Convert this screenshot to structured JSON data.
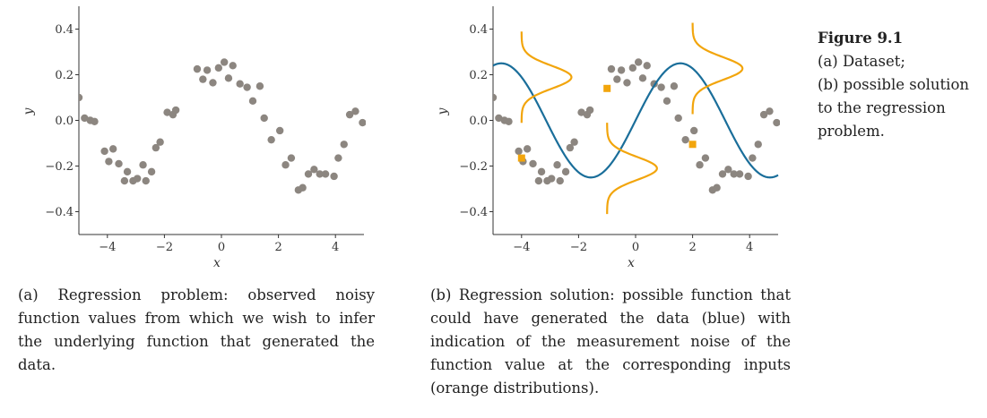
{
  "margin_note": {
    "title": "Figure 9.1",
    "lines": [
      "(a) Dataset;",
      "(b) possible solution",
      "to the regression",
      "problem."
    ]
  },
  "captions": {
    "a": "(a) Regression problem: observed noisy function values from which we wish to infer the underlying function that generated the data.",
    "b": "(b) Regression solution: possible function that could have generated the data (blue) with indication of the measurement noise of the function value at the corresponding inputs (orange distributions)."
  },
  "colors": {
    "points": "#8c8680",
    "function": "#1a6e9a",
    "noise": "#f2a50c",
    "axis": "#333333"
  },
  "chart_data": [
    {
      "id": "a",
      "type": "scatter",
      "title": "",
      "xlabel": "x",
      "ylabel": "y",
      "xlim": [
        -5,
        5
      ],
      "ylim": [
        -0.5,
        0.5
      ],
      "xticks": [
        -4,
        -2,
        0,
        2,
        4
      ],
      "xtick_labels": [
        "−4",
        "−2",
        "0",
        "2",
        "4"
      ],
      "yticks": [
        -0.4,
        -0.2,
        0.0,
        0.2,
        0.4
      ],
      "ytick_labels": [
        "−0.4",
        "−0.2",
        "0.0",
        "0.2",
        "0.4"
      ],
      "points": [
        [
          -5.0,
          0.1
        ],
        [
          -4.8,
          0.01
        ],
        [
          -4.6,
          0.0
        ],
        [
          -4.45,
          -0.005
        ],
        [
          -4.1,
          -0.135
        ],
        [
          -3.8,
          -0.125
        ],
        [
          -3.95,
          -0.18
        ],
        [
          -3.6,
          -0.19
        ],
        [
          -3.3,
          -0.225
        ],
        [
          -3.4,
          -0.265
        ],
        [
          -3.1,
          -0.265
        ],
        [
          -2.95,
          -0.255
        ],
        [
          -2.75,
          -0.195
        ],
        [
          -2.65,
          -0.265
        ],
        [
          -2.45,
          -0.225
        ],
        [
          -2.3,
          -0.12
        ],
        [
          -2.15,
          -0.095
        ],
        [
          -1.9,
          0.035
        ],
        [
          -1.7,
          0.025
        ],
        [
          -1.6,
          0.045
        ],
        [
          -0.85,
          0.225
        ],
        [
          -0.65,
          0.18
        ],
        [
          -0.5,
          0.22
        ],
        [
          -0.3,
          0.165
        ],
        [
          -0.1,
          0.23
        ],
        [
          0.1,
          0.255
        ],
        [
          0.25,
          0.185
        ],
        [
          0.4,
          0.24
        ],
        [
          0.65,
          0.16
        ],
        [
          0.9,
          0.145
        ],
        [
          1.1,
          0.085
        ],
        [
          1.35,
          0.15
        ],
        [
          1.5,
          0.01
        ],
        [
          1.75,
          -0.085
        ],
        [
          2.05,
          -0.045
        ],
        [
          2.25,
          -0.195
        ],
        [
          2.45,
          -0.165
        ],
        [
          2.7,
          -0.305
        ],
        [
          2.85,
          -0.295
        ],
        [
          3.05,
          -0.235
        ],
        [
          3.25,
          -0.215
        ],
        [
          3.45,
          -0.235
        ],
        [
          3.65,
          -0.235
        ],
        [
          3.95,
          -0.245
        ],
        [
          4.1,
          -0.165
        ],
        [
          4.3,
          -0.105
        ],
        [
          4.5,
          0.025
        ],
        [
          4.7,
          0.04
        ],
        [
          4.95,
          -0.01
        ]
      ]
    },
    {
      "id": "b",
      "type": "scatter",
      "title": "",
      "xlabel": "x",
      "ylabel": "y",
      "xlim": [
        -5,
        5
      ],
      "ylim": [
        -0.5,
        0.5
      ],
      "xticks": [
        -4,
        -2,
        0,
        2,
        4
      ],
      "xtick_labels": [
        "−4",
        "−2",
        "0",
        "2",
        "4"
      ],
      "yticks": [
        -0.4,
        -0.2,
        0.0,
        0.2,
        0.4
      ],
      "ytick_labels": [
        "−0.4",
        "−0.2",
        "0.0",
        "0.2",
        "0.4"
      ],
      "points": [
        [
          -5.0,
          0.1
        ],
        [
          -4.8,
          0.01
        ],
        [
          -4.6,
          0.0
        ],
        [
          -4.45,
          -0.005
        ],
        [
          -4.1,
          -0.135
        ],
        [
          -3.8,
          -0.125
        ],
        [
          -3.95,
          -0.18
        ],
        [
          -3.6,
          -0.19
        ],
        [
          -3.3,
          -0.225
        ],
        [
          -3.4,
          -0.265
        ],
        [
          -3.1,
          -0.265
        ],
        [
          -2.95,
          -0.255
        ],
        [
          -2.75,
          -0.195
        ],
        [
          -2.65,
          -0.265
        ],
        [
          -2.45,
          -0.225
        ],
        [
          -2.3,
          -0.12
        ],
        [
          -2.15,
          -0.095
        ],
        [
          -1.9,
          0.035
        ],
        [
          -1.7,
          0.025
        ],
        [
          -1.6,
          0.045
        ],
        [
          -0.85,
          0.225
        ],
        [
          -0.65,
          0.18
        ],
        [
          -0.5,
          0.22
        ],
        [
          -0.3,
          0.165
        ],
        [
          -0.1,
          0.23
        ],
        [
          0.1,
          0.255
        ],
        [
          0.25,
          0.185
        ],
        [
          0.4,
          0.24
        ],
        [
          0.65,
          0.16
        ],
        [
          0.9,
          0.145
        ],
        [
          1.1,
          0.085
        ],
        [
          1.35,
          0.15
        ],
        [
          1.5,
          0.01
        ],
        [
          1.75,
          -0.085
        ],
        [
          2.05,
          -0.045
        ],
        [
          2.25,
          -0.195
        ],
        [
          2.45,
          -0.165
        ],
        [
          2.7,
          -0.305
        ],
        [
          2.85,
          -0.295
        ],
        [
          3.05,
          -0.235
        ],
        [
          3.25,
          -0.215
        ],
        [
          3.45,
          -0.235
        ],
        [
          3.65,
          -0.235
        ],
        [
          3.95,
          -0.245
        ],
        [
          4.1,
          -0.165
        ],
        [
          4.3,
          -0.105
        ],
        [
          4.5,
          0.025
        ],
        [
          4.7,
          0.04
        ],
        [
          4.95,
          -0.01
        ]
      ],
      "function": {
        "label": "possible function (blue)",
        "amplitude": 0.25,
        "frequency": 1.0
      },
      "noise_inputs": [
        {
          "x": -4.0,
          "y": -0.165
        },
        {
          "x": -1.0,
          "y": 0.14
        },
        {
          "x": 2.0,
          "y": -0.105
        }
      ],
      "noise_sigma": 0.05,
      "noise_width_x": 1.75
    }
  ]
}
